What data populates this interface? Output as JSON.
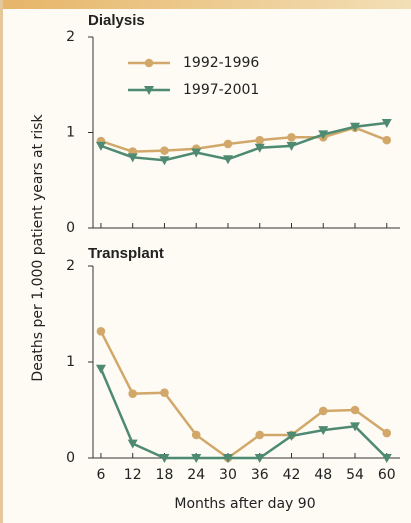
{
  "chart_data": [
    {
      "type": "line",
      "title": "Dialysis",
      "y_label": "Deaths per 1,000 patient years at risk",
      "x": [
        6,
        12,
        18,
        24,
        30,
        36,
        42,
        48,
        54,
        60
      ],
      "xlim": [
        4.5,
        62.5
      ],
      "xticks": [
        6,
        12,
        18,
        24,
        30,
        36,
        42,
        48,
        54,
        60
      ],
      "ylim": [
        0,
        2
      ],
      "yticks": [
        0,
        1,
        2
      ],
      "series": [
        {
          "name": "1992-1996",
          "color": "#d2a86a",
          "marker": "circle",
          "values": [
            0.91,
            0.8,
            0.81,
            0.83,
            0.88,
            0.92,
            0.95,
            0.95,
            1.05,
            0.92
          ]
        },
        {
          "name": "1997-2001",
          "color": "#4e8a72",
          "marker": "triangle-down",
          "values": [
            0.86,
            0.74,
            0.71,
            0.79,
            0.72,
            0.84,
            0.86,
            0.98,
            1.06,
            1.1
          ]
        }
      ]
    },
    {
      "type": "line",
      "title": "Transplant",
      "x_label": "Months after day 90",
      "x": [
        6,
        12,
        18,
        24,
        30,
        36,
        42,
        48,
        54,
        60
      ],
      "xlim": [
        4.5,
        62.5
      ],
      "xticks": [
        6,
        12,
        18,
        24,
        30,
        36,
        42,
        48,
        54,
        60
      ],
      "ylim": [
        0,
        2
      ],
      "yticks": [
        0,
        1,
        2
      ],
      "series": [
        {
          "color": "#d2a86a",
          "marker": "circle",
          "values": [
            1.32,
            0.67,
            0.68,
            0.24,
            0.0,
            0.24,
            0.24,
            0.49,
            0.5,
            0.26
          ]
        },
        {
          "color": "#4e8a72",
          "marker": "triangle-down",
          "values": [
            0.93,
            0.15,
            0.0,
            0.0,
            0.0,
            0.0,
            0.23,
            0.29,
            0.33,
            0.0
          ]
        }
      ]
    }
  ]
}
